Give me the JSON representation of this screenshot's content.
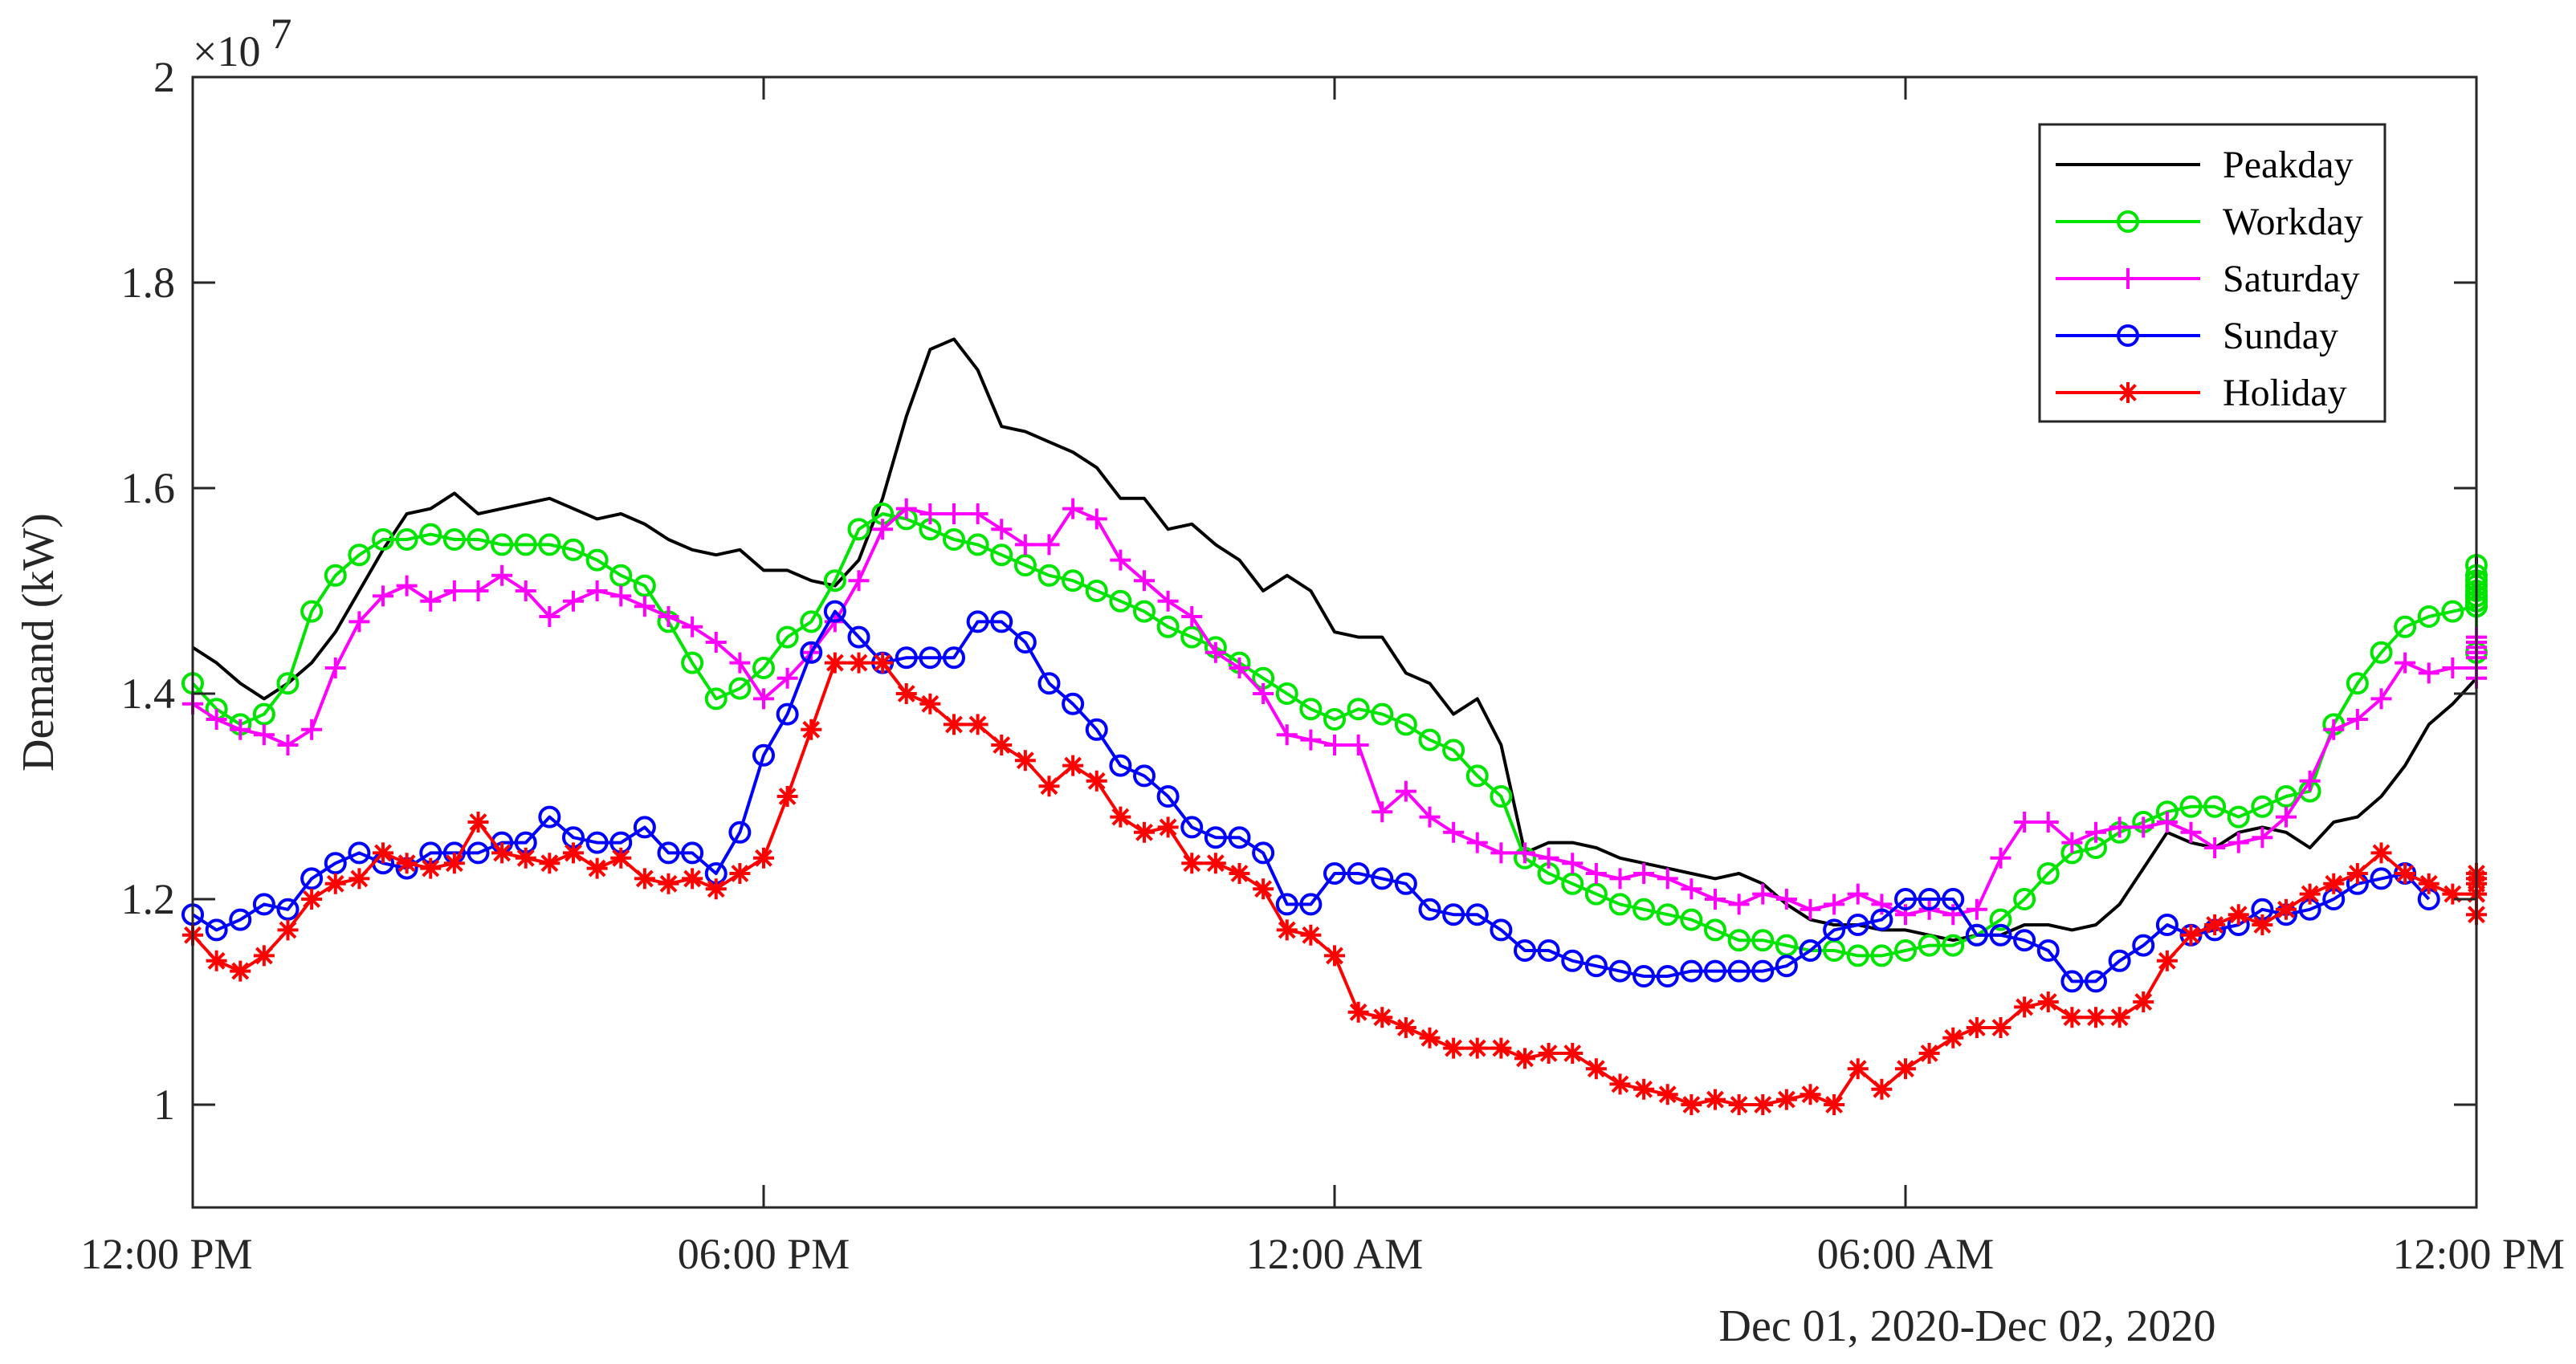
{
  "chart_data": {
    "type": "line",
    "title": "",
    "xlabel": "Dec 01, 2020-Dec 02, 2020",
    "ylabel": "Demand (kW)",
    "y_multiplier": "×10",
    "y_exponent": "7",
    "xlim": [
      0,
      24
    ],
    "ylim": [
      0.9,
      2.0
    ],
    "grid": false,
    "legend_position": "top-right",
    "x_ticks": [
      {
        "value": 0,
        "label": "12:00 PM"
      },
      {
        "value": 6,
        "label": "06:00 PM"
      },
      {
        "value": 12,
        "label": "12:00 AM"
      },
      {
        "value": 18,
        "label": "06:00 AM"
      },
      {
        "value": 24,
        "label": "12:00 PM"
      }
    ],
    "y_ticks": [
      {
        "value": 1.0,
        "label": "1"
      },
      {
        "value": 1.2,
        "label": "1.2"
      },
      {
        "value": 1.4,
        "label": "1.4"
      },
      {
        "value": 1.6,
        "label": "1.6"
      },
      {
        "value": 1.8,
        "label": "1.8"
      },
      {
        "value": 2.0,
        "label": "2"
      }
    ],
    "x_step_hours": 0.25,
    "series": [
      {
        "name": "Peakday",
        "color": "#000000",
        "marker": "none",
        "values": [
          1.445,
          1.43,
          1.41,
          1.395,
          1.41,
          1.43,
          1.46,
          1.5,
          1.54,
          1.575,
          1.58,
          1.595,
          1.575,
          1.58,
          1.585,
          1.59,
          1.58,
          1.57,
          1.575,
          1.565,
          1.55,
          1.54,
          1.535,
          1.54,
          1.52,
          1.52,
          1.51,
          1.505,
          1.53,
          1.59,
          1.67,
          1.735,
          1.745,
          1.715,
          1.66,
          1.655,
          1.645,
          1.635,
          1.62,
          1.59,
          1.59,
          1.56,
          1.565,
          1.545,
          1.53,
          1.5,
          1.515,
          1.5,
          1.46,
          1.455,
          1.455,
          1.42,
          1.41,
          1.38,
          1.395,
          1.35,
          1.245,
          1.255,
          1.255,
          1.25,
          1.24,
          1.235,
          1.23,
          1.225,
          1.22,
          1.225,
          1.215,
          1.195,
          1.18,
          1.175,
          1.175,
          1.17,
          1.17,
          1.165,
          1.16,
          1.165,
          1.165,
          1.175,
          1.175,
          1.17,
          1.175,
          1.195,
          1.23,
          1.265,
          1.255,
          1.25,
          1.265,
          1.27,
          1.265,
          1.25,
          1.275,
          1.28,
          1.3,
          1.33,
          1.37,
          1.39,
          1.415,
          1.445,
          1.475,
          1.49,
          1.495,
          1.51,
          1.53,
          1.515,
          1.525,
          1.535,
          1.52,
          1.52,
          1.525,
          1.52,
          1.52,
          1.5,
          1.46
        ]
      },
      {
        "name": "Workday",
        "color": "#00e400",
        "marker": "circle",
        "values": [
          1.41,
          1.385,
          1.37,
          1.38,
          1.41,
          1.48,
          1.515,
          1.535,
          1.55,
          1.55,
          1.555,
          1.55,
          1.55,
          1.545,
          1.545,
          1.545,
          1.54,
          1.53,
          1.515,
          1.505,
          1.47,
          1.43,
          1.395,
          1.405,
          1.425,
          1.455,
          1.47,
          1.51,
          1.56,
          1.575,
          1.57,
          1.56,
          1.55,
          1.545,
          1.535,
          1.525,
          1.515,
          1.51,
          1.5,
          1.49,
          1.48,
          1.465,
          1.455,
          1.445,
          1.43,
          1.415,
          1.4,
          1.385,
          1.375,
          1.385,
          1.38,
          1.37,
          1.355,
          1.345,
          1.32,
          1.3,
          1.24,
          1.225,
          1.215,
          1.205,
          1.195,
          1.19,
          1.185,
          1.18,
          1.17,
          1.16,
          1.16,
          1.155,
          1.15,
          1.15,
          1.145,
          1.145,
          1.15,
          1.155,
          1.155,
          1.165,
          1.18,
          1.2,
          1.225,
          1.245,
          1.25,
          1.265,
          1.275,
          1.285,
          1.29,
          1.29,
          1.28,
          1.29,
          1.3,
          1.305,
          1.37,
          1.41,
          1.44,
          1.465,
          1.475,
          1.48,
          1.485,
          1.49,
          1.49,
          1.485,
          1.495,
          1.5,
          1.505,
          1.51,
          1.525,
          1.515,
          1.495,
          1.44
        ]
      },
      {
        "name": "Saturday",
        "color": "#ff00ff",
        "marker": "plus",
        "values": [
          1.39,
          1.375,
          1.365,
          1.36,
          1.35,
          1.365,
          1.425,
          1.47,
          1.495,
          1.505,
          1.49,
          1.5,
          1.5,
          1.515,
          1.5,
          1.475,
          1.49,
          1.5,
          1.495,
          1.485,
          1.475,
          1.465,
          1.45,
          1.43,
          1.395,
          1.415,
          1.44,
          1.47,
          1.51,
          1.56,
          1.58,
          1.575,
          1.575,
          1.575,
          1.56,
          1.545,
          1.545,
          1.58,
          1.57,
          1.53,
          1.51,
          1.49,
          1.475,
          1.44,
          1.425,
          1.4,
          1.36,
          1.355,
          1.35,
          1.35,
          1.285,
          1.305,
          1.28,
          1.265,
          1.255,
          1.245,
          1.245,
          1.24,
          1.235,
          1.225,
          1.22,
          1.225,
          1.22,
          1.21,
          1.2,
          1.195,
          1.205,
          1.2,
          1.19,
          1.195,
          1.205,
          1.195,
          1.185,
          1.19,
          1.185,
          1.19,
          1.24,
          1.275,
          1.275,
          1.255,
          1.265,
          1.27,
          1.27,
          1.275,
          1.265,
          1.25,
          1.255,
          1.26,
          1.28,
          1.315,
          1.365,
          1.375,
          1.395,
          1.43,
          1.42,
          1.425,
          1.425,
          1.45,
          1.455,
          1.44,
          1.44,
          1.44,
          1.445,
          1.435,
          1.415
        ]
      },
      {
        "name": "Sunday",
        "color": "#0000ff",
        "marker": "circle",
        "values": [
          1.185,
          1.17,
          1.18,
          1.195,
          1.19,
          1.22,
          1.235,
          1.245,
          1.235,
          1.23,
          1.245,
          1.245,
          1.245,
          1.255,
          1.255,
          1.28,
          1.26,
          1.255,
          1.255,
          1.27,
          1.245,
          1.245,
          1.225,
          1.265,
          1.34,
          1.38,
          1.44,
          1.48,
          1.455,
          1.43,
          1.435,
          1.435,
          1.435,
          1.47,
          1.47,
          1.45,
          1.41,
          1.39,
          1.365,
          1.33,
          1.32,
          1.3,
          1.27,
          1.26,
          1.26,
          1.245,
          1.195,
          1.195,
          1.225,
          1.225,
          1.22,
          1.215,
          1.19,
          1.185,
          1.185,
          1.17,
          1.15,
          1.15,
          1.14,
          1.135,
          1.13,
          1.125,
          1.125,
          1.13,
          1.13,
          1.13,
          1.13,
          1.135,
          1.15,
          1.17,
          1.175,
          1.18,
          1.2,
          1.2,
          1.2,
          1.165,
          1.165,
          1.16,
          1.15,
          1.12,
          1.12,
          1.14,
          1.155,
          1.175,
          1.165,
          1.17,
          1.175,
          1.19,
          1.185,
          1.19,
          1.2,
          1.215,
          1.22,
          1.225,
          1.2
        ]
      },
      {
        "name": "Holiday",
        "color": "#ff0000",
        "marker": "asterisk",
        "values": [
          1.165,
          1.14,
          1.13,
          1.145,
          1.17,
          1.2,
          1.215,
          1.22,
          1.245,
          1.235,
          1.23,
          1.235,
          1.275,
          1.245,
          1.24,
          1.235,
          1.245,
          1.23,
          1.24,
          1.22,
          1.215,
          1.22,
          1.21,
          1.225,
          1.24,
          1.3,
          1.365,
          1.43,
          1.43,
          1.43,
          1.4,
          1.39,
          1.37,
          1.37,
          1.35,
          1.335,
          1.31,
          1.33,
          1.315,
          1.28,
          1.265,
          1.27,
          1.235,
          1.235,
          1.225,
          1.21,
          1.17,
          1.165,
          1.145,
          1.09,
          1.085,
          1.075,
          1.065,
          1.055,
          1.055,
          1.055,
          1.045,
          1.05,
          1.05,
          1.035,
          1.02,
          1.015,
          1.01,
          1.0,
          1.005,
          1.0,
          1.0,
          1.005,
          1.01,
          1.0,
          1.035,
          1.015,
          1.035,
          1.05,
          1.065,
          1.075,
          1.075,
          1.095,
          1.1,
          1.085,
          1.085,
          1.085,
          1.1,
          1.14,
          1.165,
          1.175,
          1.185,
          1.175,
          1.19,
          1.205,
          1.215,
          1.225,
          1.245,
          1.225,
          1.215,
          1.205,
          1.205,
          1.215,
          1.225,
          1.22,
          1.205,
          1.185
        ]
      }
    ]
  }
}
